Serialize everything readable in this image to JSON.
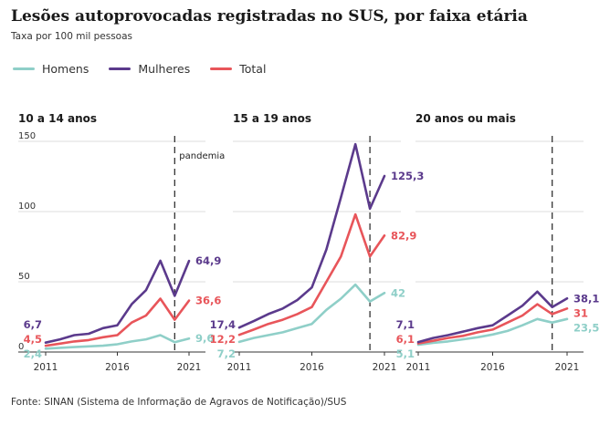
{
  "title": "Lesões autoprovocadas registradas no SUS, por faixa etária",
  "subtitle": "Taxa por 100 mil pessoas",
  "legend": [
    {
      "label": "Homens",
      "color": "#8fcfc8"
    },
    {
      "label": "Mulheres",
      "color": "#5b3a8c"
    },
    {
      "label": "Total",
      "color": "#e8555a"
    }
  ],
  "annotation": "pandemia",
  "source": "Fonte: SINAN (Sistema de Informação de Agravos de Notificação)/SUS",
  "chart_data": [
    {
      "type": "line",
      "title": "10 a 14 anos",
      "x": [
        2011,
        2012,
        2013,
        2014,
        2015,
        2016,
        2017,
        2018,
        2019,
        2020,
        2021
      ],
      "xticks": [
        2011,
        2016,
        2021
      ],
      "yticks": [
        0,
        50,
        100,
        150
      ],
      "ylim": [
        0,
        150
      ],
      "event_line_x": 2020,
      "series": [
        {
          "name": "Homens",
          "values": [
            2.4,
            3,
            3.5,
            4,
            4.5,
            5.5,
            7.5,
            9,
            12,
            7,
            9.6
          ],
          "start_label": "2,4",
          "end_label": "9,6"
        },
        {
          "name": "Mulheres",
          "values": [
            6.7,
            9,
            12,
            13,
            17,
            19,
            34,
            44,
            65,
            40,
            64.9
          ],
          "start_label": "6,7",
          "end_label": "64,9"
        },
        {
          "name": "Total",
          "values": [
            4.5,
            6,
            7.5,
            8.5,
            10.5,
            12,
            21,
            26,
            38,
            23,
            36.6
          ],
          "start_label": "4,5",
          "end_label": "36,6"
        }
      ]
    },
    {
      "type": "line",
      "title": "15 a 19 anos",
      "x": [
        2011,
        2012,
        2013,
        2014,
        2015,
        2016,
        2017,
        2018,
        2019,
        2020,
        2021
      ],
      "xticks": [
        2011,
        2016,
        2021
      ],
      "ylim": [
        0,
        150
      ],
      "event_line_x": 2020,
      "series": [
        {
          "name": "Homens",
          "values": [
            7.2,
            10,
            12,
            14,
            17,
            20,
            30,
            38,
            48,
            36,
            42
          ],
          "start_label": "7,2",
          "end_label": "42"
        },
        {
          "name": "Mulheres",
          "values": [
            17.4,
            22,
            27,
            31,
            37,
            46,
            73,
            110,
            148,
            102,
            125.3
          ],
          "start_label": "17,4",
          "end_label": "125,3"
        },
        {
          "name": "Total",
          "values": [
            12.2,
            16,
            20,
            23,
            27,
            32,
            50,
            68,
            98,
            68,
            82.9
          ],
          "start_label": "12,2",
          "end_label": "82,9"
        }
      ]
    },
    {
      "type": "line",
      "title": "20 anos ou mais",
      "x": [
        2011,
        2012,
        2013,
        2014,
        2015,
        2016,
        2017,
        2018,
        2019,
        2020,
        2021
      ],
      "xticks": [
        2011,
        2016,
        2021
      ],
      "ylim": [
        0,
        150
      ],
      "event_line_x": 2020,
      "series": [
        {
          "name": "Homens",
          "values": [
            5.1,
            6.5,
            7.5,
            9,
            10.5,
            12.5,
            15,
            19,
            23.5,
            21,
            23.5
          ],
          "start_label": "5,1",
          "end_label": "23,5"
        },
        {
          "name": "Mulheres",
          "values": [
            7.1,
            10,
            12,
            14.5,
            17,
            19,
            26,
            33,
            43,
            32,
            38.1
          ],
          "start_label": "7,1",
          "end_label": "38,1"
        },
        {
          "name": "Total",
          "values": [
            6.1,
            8,
            10,
            11.5,
            14,
            16,
            21,
            26,
            34,
            27,
            31
          ],
          "start_label": "6,1",
          "end_label": "31"
        }
      ]
    }
  ]
}
